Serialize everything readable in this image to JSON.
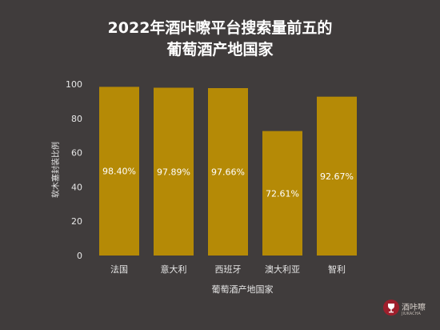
{
  "chart_data": {
    "type": "bar",
    "title_lines": [
      "2022年酒咔嚓平台搜索量前五的",
      "葡萄酒产地国家"
    ],
    "categories": [
      "法国",
      "意大利",
      "西班牙",
      "澳大利亚",
      "智利"
    ],
    "values": [
      98.4,
      97.89,
      97.66,
      72.61,
      92.67
    ],
    "data_labels": [
      "98.40%",
      "97.89%",
      "97.66%",
      "72.61%",
      "92.67%"
    ],
    "xlabel": "葡萄酒产地国家",
    "ylabel": "软木塞封装比例",
    "ylim": [
      0,
      100
    ],
    "yticks": [
      0,
      20,
      40,
      60,
      80,
      100
    ],
    "grid": false,
    "colors": {
      "bar": "#b58a06",
      "background": "#403c3c",
      "text": "#ffffff",
      "axis_text": "#e6e6e6"
    }
  },
  "logo": {
    "brand": "酒咔嚓",
    "sub": "JIUKACHA"
  }
}
